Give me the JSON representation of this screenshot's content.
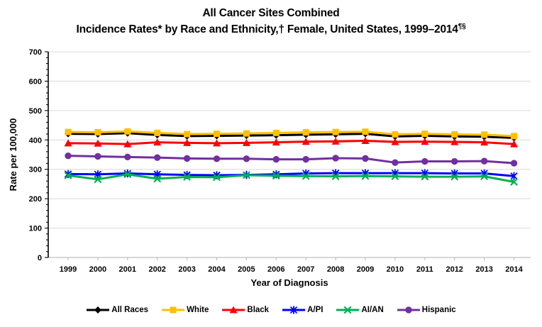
{
  "title": {
    "line1": "All Cancer Sites Combined",
    "line2": "Incidence Rates* by Race and Ethnicity,† Female, United States, 1999–2014",
    "line2_superscript": "¶§"
  },
  "chart_data": {
    "type": "line",
    "title": "All Cancer Sites Combined Incidence Rates* by Race and Ethnicity,† Female, United States, 1999–2014¶§",
    "xlabel": "Year of Diagnosis",
    "ylabel": "Rate per 100,000",
    "x": [
      1999,
      2000,
      2001,
      2002,
      2003,
      2004,
      2005,
      2006,
      2007,
      2008,
      2009,
      2010,
      2011,
      2012,
      2013,
      2014
    ],
    "ylim": [
      0,
      700
    ],
    "ytick_step": 100,
    "y_minor_tick_step": 20,
    "grid": true,
    "legend_position": "bottom",
    "series": [
      {
        "name": "All Races",
        "color": "#000000",
        "marker": "diamond",
        "values": [
          421,
          420,
          423,
          417,
          413,
          414,
          415,
          416,
          418,
          419,
          421,
          412,
          414,
          412,
          411,
          407
        ]
      },
      {
        "name": "White",
        "color": "#FFC000",
        "marker": "square",
        "values": [
          427,
          426,
          429,
          424,
          420,
          421,
          422,
          424,
          426,
          427,
          428,
          419,
          421,
          419,
          418,
          413
        ]
      },
      {
        "name": "Black",
        "color": "#FF0000",
        "marker": "triangle",
        "values": [
          389,
          388,
          386,
          392,
          390,
          389,
          390,
          392,
          394,
          395,
          397,
          393,
          394,
          393,
          392,
          386
        ]
      },
      {
        "name": "A/PI",
        "color": "#0000FF",
        "marker": "star",
        "values": [
          284,
          283,
          286,
          283,
          281,
          280,
          281,
          283,
          286,
          287,
          287,
          287,
          287,
          286,
          286,
          277
        ]
      },
      {
        "name": "AI/AN",
        "color": "#00B050",
        "marker": "x",
        "values": [
          279,
          266,
          283,
          268,
          274,
          273,
          280,
          278,
          277,
          276,
          277,
          276,
          275,
          275,
          276,
          257
        ]
      },
      {
        "name": "Hispanic",
        "color": "#7030A0",
        "marker": "circle",
        "values": [
          346,
          344,
          342,
          340,
          337,
          336,
          336,
          334,
          334,
          338,
          337,
          323,
          327,
          327,
          328,
          321
        ]
      }
    ]
  },
  "colors": {
    "background": "#FFFFFF",
    "gridline": "#D9D9D9",
    "x_axis_line": "#BFBFBF",
    "y_axis_line": "#000000",
    "text": "#000000"
  }
}
